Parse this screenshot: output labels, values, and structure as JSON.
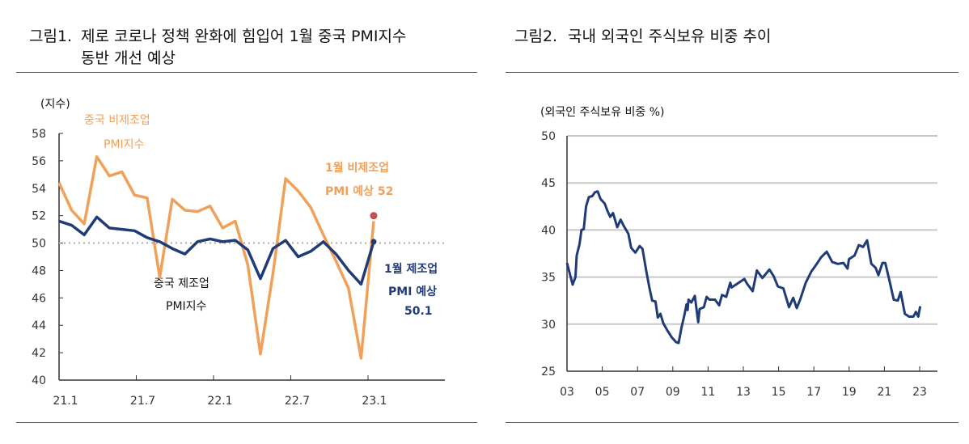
{
  "figure1": {
    "label": "그림1.",
    "title_line1": "제로 코로나 정책 완화에 힘입어 1월 중국 PMI지수",
    "title_line2": "동반 개선 예상"
  },
  "figure2": {
    "label": "그림2.",
    "title": "국내 외국인 주식보유 비중 추이"
  },
  "chart_data": [
    {
      "type": "line",
      "ylabel": "(지수)",
      "ylim": [
        40,
        58
      ],
      "yticks": [
        40,
        42,
        44,
        46,
        48,
        50,
        52,
        54,
        56,
        58
      ],
      "xtick_labels": [
        "21.1",
        "21.7",
        "22.1",
        "22.7",
        "23.1"
      ],
      "reference_line": 50,
      "categories": [
        "20.12",
        "21.1",
        "21.2",
        "21.3",
        "21.4",
        "21.5",
        "21.6",
        "21.7",
        "21.8",
        "21.9",
        "21.10",
        "21.11",
        "21.12",
        "22.1",
        "22.2",
        "22.3",
        "22.4",
        "22.5",
        "22.6",
        "22.7",
        "22.8",
        "22.9",
        "22.10",
        "22.11",
        "22.12",
        "23.1"
      ],
      "series": [
        {
          "name": "중국 비제조업 PMI지수",
          "color": "#f0a058",
          "values": [
            54.4,
            52.4,
            51.4,
            56.3,
            54.9,
            55.2,
            53.5,
            53.3,
            47.5,
            53.2,
            52.4,
            52.3,
            52.7,
            51.1,
            51.6,
            48.4,
            41.9,
            47.8,
            54.7,
            53.8,
            52.6,
            50.6,
            48.7,
            46.7,
            41.6,
            51.6
          ]
        },
        {
          "name": "중국 제조업 PMI지수",
          "color": "#1f3c78",
          "values": [
            51.6,
            51.3,
            50.6,
            51.9,
            51.1,
            51.0,
            50.9,
            50.4,
            50.1,
            49.6,
            49.2,
            50.1,
            50.3,
            50.1,
            50.2,
            49.5,
            47.4,
            49.6,
            50.2,
            49.0,
            49.4,
            50.1,
            49.2,
            48.0,
            47.0,
            50.1
          ]
        }
      ],
      "forecasts": [
        {
          "category": "23.1",
          "value": 52,
          "color": "#c0504d",
          "label_line1": "1월 비제조업",
          "label_line2": "PMI 예상 52"
        },
        {
          "category": "23.1",
          "value": 50.1,
          "color": "#1f3c78",
          "label_line1": "1월 제조업",
          "label_line2": "PMI 예상",
          "label_line3": "50.1"
        }
      ],
      "annotations": {
        "nonmfg_line1": "중국 비제조업",
        "nonmfg_line2": "PMI지수",
        "mfg_line1": "중국 제조업",
        "mfg_line2": "PMI지수"
      }
    },
    {
      "type": "line",
      "ylabel": "(외국인 주식보유 비중 %)",
      "ylim": [
        25,
        50
      ],
      "yticks": [
        25,
        30,
        35,
        40,
        45,
        50
      ],
      "xlim": [
        2003,
        2024
      ],
      "xtick_labels": [
        "03",
        "05",
        "07",
        "09",
        "11",
        "13",
        "15",
        "17",
        "19",
        "21",
        "23"
      ],
      "grid": true,
      "color": "#1f3c78",
      "x": [
        2003.0,
        2003.32,
        2003.48,
        2003.55,
        2003.71,
        2003.82,
        2003.95,
        2004.08,
        2004.24,
        2004.43,
        2004.58,
        2004.74,
        2004.9,
        2005.14,
        2005.3,
        2005.45,
        2005.61,
        2005.85,
        2006.04,
        2006.2,
        2006.48,
        2006.64,
        2006.88,
        2007.12,
        2007.28,
        2007.51,
        2007.67,
        2007.83,
        2008.02,
        2008.15,
        2008.3,
        2008.46,
        2008.7,
        2008.94,
        2009.18,
        2009.33,
        2009.49,
        2009.65,
        2009.78,
        2009.84,
        2009.89,
        2010.05,
        2010.25,
        2010.44,
        2010.52,
        2010.76,
        2010.92,
        2011.08,
        2011.39,
        2011.63,
        2011.79,
        2012.03,
        2012.26,
        2012.34,
        2012.66,
        2013.06,
        2013.21,
        2013.53,
        2013.77,
        2014.08,
        2014.48,
        2014.72,
        2014.96,
        2015.27,
        2015.59,
        2015.83,
        2016.03,
        2016.22,
        2016.54,
        2016.86,
        2017.09,
        2017.41,
        2017.73,
        2018.04,
        2018.36,
        2018.68,
        2018.91,
        2018.99,
        2019.31,
        2019.55,
        2019.79,
        2020.02,
        2020.26,
        2020.5,
        2020.66,
        2020.89,
        2021.05,
        2021.29,
        2021.53,
        2021.76,
        2021.92,
        2022.16,
        2022.4,
        2022.64,
        2022.79,
        2022.92,
        2023.03
      ],
      "y": [
        36.5,
        34.2,
        35.0,
        37.3,
        38.5,
        40.0,
        40.1,
        42.5,
        43.5,
        43.6,
        44.0,
        44.1,
        43.3,
        42.8,
        42.0,
        41.4,
        41.8,
        40.3,
        41.1,
        40.5,
        39.6,
        38.1,
        37.6,
        38.3,
        38.0,
        35.5,
        33.9,
        32.5,
        32.4,
        30.7,
        31.1,
        30.1,
        29.3,
        28.6,
        28.1,
        28.0,
        29.6,
        30.9,
        32.1,
        31.5,
        32.6,
        32.3,
        33.0,
        30.2,
        31.6,
        31.8,
        32.9,
        32.6,
        32.6,
        32.0,
        33.1,
        32.9,
        34.4,
        33.9,
        34.3,
        34.8,
        34.3,
        33.5,
        35.7,
        34.9,
        35.8,
        35.1,
        34.0,
        33.8,
        31.8,
        32.8,
        31.7,
        32.6,
        34.4,
        35.6,
        36.2,
        37.1,
        37.7,
        36.6,
        36.4,
        36.5,
        35.9,
        36.9,
        37.3,
        38.4,
        38.2,
        38.9,
        36.4,
        36.0,
        35.2,
        36.5,
        36.5,
        34.6,
        32.6,
        32.5,
        33.4,
        31.1,
        30.8,
        30.8,
        31.3,
        30.8,
        31.9
      ]
    }
  ]
}
